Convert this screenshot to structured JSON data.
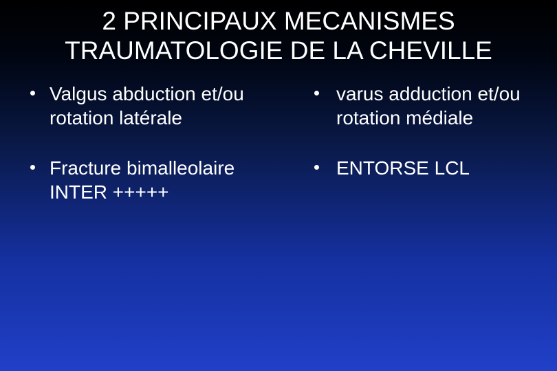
{
  "slide": {
    "title": "2 PRINCIPAUX MECANISMES TRAUMATOLOGIE DE LA CHEVILLE",
    "title_fontsize": 37,
    "body_fontsize": 28,
    "text_color": "#ffffff",
    "background_gradient": [
      "#000000",
      "#000510",
      "#0a1a4a",
      "#1530a0",
      "#2040c8"
    ],
    "left_column": {
      "items": [
        {
          "text": "Valgus abduction et/ou  rotation latérale"
        },
        {
          "text": "Fracture bimalleolaire INTER +++++"
        }
      ]
    },
    "right_column": {
      "items": [
        {
          "text": " varus adduction et/ou rotation médiale"
        },
        {
          "text": "ENTORSE LCL"
        }
      ]
    }
  }
}
